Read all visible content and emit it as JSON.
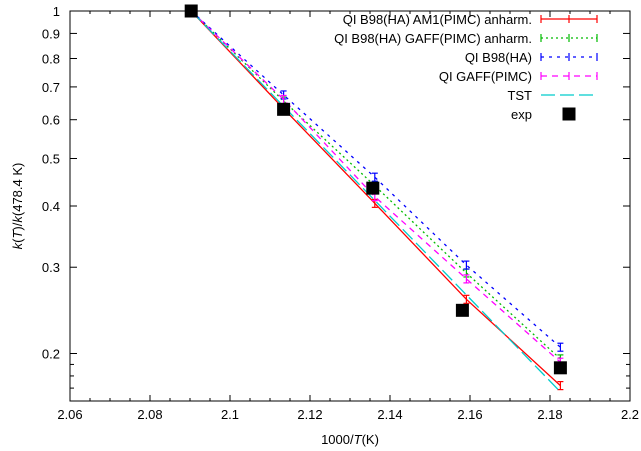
{
  "chart_data": {
    "type": "line",
    "x_scale": "linear",
    "y_scale": "log",
    "xlim": [
      2.06,
      2.2
    ],
    "ylim": [
      0.16,
      1.0
    ],
    "x_ticks": [
      2.06,
      2.08,
      2.1,
      2.12,
      2.14,
      2.16,
      2.18,
      2.2
    ],
    "x_tick_labels": [
      "2.06",
      "2.08",
      "2.1",
      "2.12",
      "2.14",
      "2.16",
      "2.18",
      "2.2"
    ],
    "y_ticks": [
      0.2,
      0.3,
      0.4,
      0.5,
      0.6,
      0.7,
      0.8,
      0.9,
      1.0
    ],
    "y_tick_labels": [
      "0.2",
      "0.3",
      "0.4",
      "0.5",
      "0.6",
      "0.7",
      "0.8",
      "0.9",
      "1"
    ],
    "xlabel_parts": [
      "1000/",
      "T",
      "(K)"
    ],
    "ylabel_parts": [
      "k",
      "(",
      "T",
      ")/",
      "k",
      "(478.4 K)"
    ],
    "grid": false,
    "legend_position": "top-right",
    "series": [
      {
        "name": "QI B98(HA) AM1(PIMC) anharm.",
        "color": "#ff0000",
        "dash": "",
        "errorbars": true,
        "x": [
          2.0903,
          2.1134,
          2.1362,
          2.1591,
          2.1826
        ],
        "y": [
          1.0,
          0.632,
          0.405,
          0.258,
          0.172
        ]
      },
      {
        "name": "QI B98(HA) GAFF(PIMC) anharm.",
        "color": "#00bb00",
        "dash": "2,3",
        "errorbars": true,
        "x": [
          2.0903,
          2.1134,
          2.1362,
          2.1591,
          2.1826
        ],
        "y": [
          1.0,
          0.655,
          0.44,
          0.292,
          0.195
        ]
      },
      {
        "name": "QI B98(HA)",
        "color": "#0000ff",
        "dash": "3,5",
        "errorbars": true,
        "x": [
          2.0903,
          2.1134,
          2.1362,
          2.1591,
          2.1826
        ],
        "y": [
          1.0,
          0.674,
          0.458,
          0.303,
          0.206
        ]
      },
      {
        "name": "QI GAFF(PIMC)",
        "color": "#ff00ff",
        "dash": "6,5",
        "errorbars": true,
        "x": [
          2.0903,
          2.1134,
          2.1362,
          2.1591,
          2.1826
        ],
        "y": [
          1.0,
          0.66,
          0.418,
          0.284,
          0.192
        ]
      },
      {
        "name": "TST",
        "color": "#00cccc",
        "dash": "14,5",
        "errorbars": false,
        "x": [
          2.0903,
          2.1826
        ],
        "y": [
          1.0,
          0.167
        ]
      },
      {
        "name": "exp",
        "color": "#000000",
        "marker": "square",
        "points_only": true,
        "x": [
          2.0903,
          2.1134,
          2.1357,
          2.1581,
          2.1826
        ],
        "y": [
          1.0,
          0.63,
          0.435,
          0.245,
          0.187
        ]
      }
    ]
  }
}
